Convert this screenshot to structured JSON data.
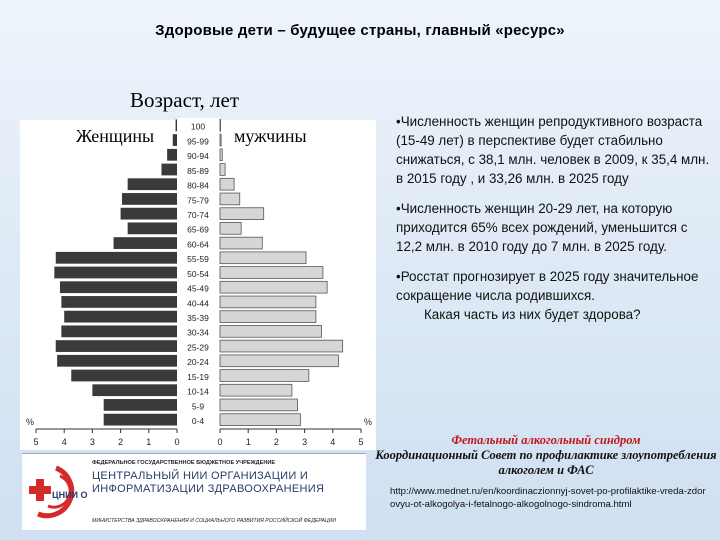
{
  "slide": {
    "title": "Здоровые дети – будущее страны, главный «ресурс»"
  },
  "chart_data": {
    "type": "bar",
    "subtype": "population-pyramid",
    "title": "Возраст, лет",
    "left_label": "Женщины",
    "right_label": "мужчины",
    "axis_label": "%",
    "categories": [
      "100",
      "95-99",
      "90-94",
      "85-89",
      "80-84",
      "75-79",
      "70-74",
      "65-69",
      "60-64",
      "55-59",
      "50-54",
      "45-49",
      "40-44",
      "35-39",
      "30-34",
      "25-29",
      "20-24",
      "15-19",
      "10-14",
      "5-9",
      "0-4"
    ],
    "series": [
      {
        "name": "Женщины",
        "side": "left",
        "color": "#3a3a3a",
        "values": [
          0.05,
          0.15,
          0.35,
          0.55,
          1.75,
          1.95,
          2.0,
          1.75,
          2.25,
          4.3,
          4.35,
          4.15,
          4.1,
          4.0,
          4.1,
          4.3,
          4.25,
          3.75,
          3.0,
          2.6,
          2.6
        ]
      },
      {
        "name": "мужчины",
        "side": "right",
        "color": "#d6d6d6",
        "values": [
          0.02,
          0.04,
          0.08,
          0.18,
          0.5,
          0.7,
          1.55,
          0.75,
          1.5,
          3.05,
          3.65,
          3.8,
          3.4,
          3.4,
          3.6,
          4.35,
          4.2,
          3.15,
          2.55,
          2.75,
          2.85
        ]
      }
    ],
    "xaxis_left_ticks": [
      "5",
      "4",
      "3",
      "2",
      "1",
      "0"
    ],
    "xaxis_right_ticks": [
      "0",
      "1",
      "2",
      "3",
      "4",
      "5"
    ],
    "xlim": [
      0,
      5
    ],
    "grid": false
  },
  "text": {
    "bullet1": "•Численность женщин репродуктивного возраста (15-49 лет) в перспективе будет стабильно снижаться, с 38,1 млн. человек в 2009, к 35,4 млн. в 2015 году , и 33,26 млн. в 2025 году",
    "bullet2": "•Численность женщин 20-29 лет, на которую приходится 65% всех рождений, уменьшится с 12,2 млн. в 2010 году до 7 млн. в 2025 году.",
    "bullet3": "•Росстат прогнозирует в 2025 году значительное сокращение числа родившихся.",
    "bullet3_question": "Какая часть из них будет здорова?",
    "fas_title": "Фетальный алкогольный синдром",
    "fas_subtitle": "Координационный Совет по профилактике злоупотребления алкоголем и ФАС",
    "url": "http://www.mednet.ru/en/koordinaczionnyj-sovet-po-profilaktike-vreda-zdorovyu-ot-alkogolya-i-fetalnogo-alkogolnogo-sindroma.html"
  },
  "logo": {
    "emblem_text": "ЦНИИ ОИЗ",
    "org_top": "ФЕДЕРАЛЬНОЕ ГОСУДАРСТВЕННОЕ БЮДЖЕТНОЕ УЧРЕЖДЕНИЕ",
    "org_name": "ЦЕНТРАЛЬНЫЙ НИИ ОРГАНИЗАЦИИ И ИНФОРМАТИЗАЦИИ ЗДРАВООХРАНЕНИЯ",
    "org_ministry": "МИНИСТЕРСТВА ЗДРАВООХРАНЕНИЯ И СОЦИАЛЬНОГО РАЗВИТИЯ РОССИЙСКОЙ ФЕДЕРАЦИИ",
    "accent_red": "#d42a2a"
  }
}
